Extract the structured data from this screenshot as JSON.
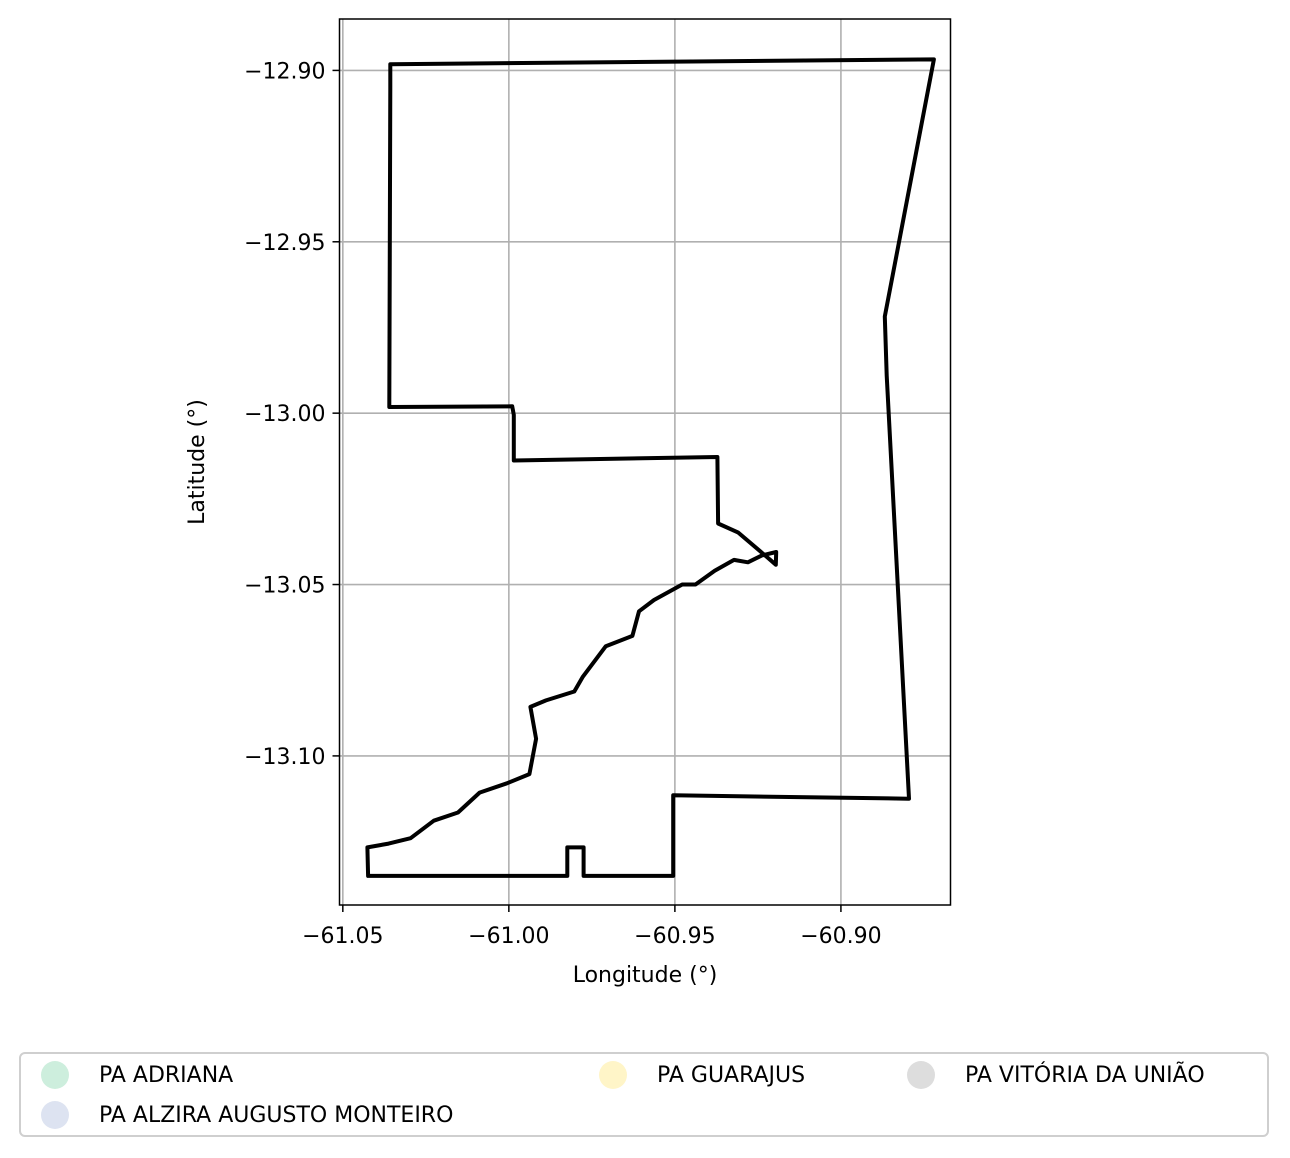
{
  "chart_data": {
    "type": "map",
    "xlabel": "Longitude (°)",
    "ylabel": "Latitude (°)",
    "xlim": [
      -61.051,
      -60.867
    ],
    "ylim": [
      -13.1435,
      -12.885
    ],
    "grid": true,
    "x_ticks": [
      -61.05,
      -61.0,
      -60.95,
      -60.9
    ],
    "y_ticks": [
      -12.9,
      -12.95,
      -13.0,
      -13.05,
      -13.1
    ],
    "x_tick_labels": [
      "−61.05",
      "−61.00",
      "−60.95",
      "−60.90"
    ],
    "y_tick_labels": [
      "−12.90",
      "−12.95",
      "−13.00",
      "−13.05",
      "−13.10"
    ],
    "boundary_color": "#000000",
    "boundary": [
      [
        -61.0357,
        -12.8982
      ],
      [
        -60.872,
        -12.8968
      ],
      [
        -60.8868,
        -12.9718
      ],
      [
        -60.8862,
        -12.989
      ],
      [
        -60.8795,
        -13.1125
      ],
      [
        -60.9505,
        -13.1115
      ],
      [
        -60.9505,
        -13.135
      ],
      [
        -60.9775,
        -13.135
      ],
      [
        -60.9775,
        -13.1267
      ],
      [
        -60.9824,
        -13.1267
      ],
      [
        -60.9824,
        -13.135
      ],
      [
        -61.0424,
        -13.135
      ],
      [
        -61.0426,
        -13.1267
      ],
      [
        -61.0362,
        -13.1256
      ],
      [
        -61.0296,
        -13.124
      ],
      [
        -61.0226,
        -13.1189
      ],
      [
        -61.0153,
        -13.1165
      ],
      [
        -61.0088,
        -13.1107
      ],
      [
        -61.0006,
        -13.108
      ],
      [
        -60.9938,
        -13.1053
      ],
      [
        -60.9918,
        -13.095
      ],
      [
        -60.9935,
        -13.0857
      ],
      [
        -60.9888,
        -13.0838
      ],
      [
        -60.9803,
        -13.0812
      ],
      [
        -60.9778,
        -13.077
      ],
      [
        -60.9708,
        -13.068
      ],
      [
        -60.9628,
        -13.065
      ],
      [
        -60.9608,
        -13.0578
      ],
      [
        -60.9563,
        -13.0545
      ],
      [
        -60.9478,
        -13.05
      ],
      [
        -60.9438,
        -13.05
      ],
      [
        -60.938,
        -13.046
      ],
      [
        -60.9322,
        -13.0428
      ],
      [
        -60.928,
        -13.0435
      ],
      [
        -60.9238,
        -13.0415
      ],
      [
        -60.9195,
        -13.0405
      ],
      [
        -60.9196,
        -13.0442
      ],
      [
        -60.9225,
        -13.0418
      ],
      [
        -60.931,
        -13.0348
      ],
      [
        -60.937,
        -13.0322
      ],
      [
        -60.9372,
        -13.0128
      ],
      [
        -60.9985,
        -13.0138
      ],
      [
        -60.9985,
        -13.0005
      ],
      [
        -60.999,
        -12.998
      ],
      [
        -61.036,
        -12.9982
      ],
      [
        -61.0357,
        -12.905
      ],
      [
        -61.0357,
        -12.8982
      ]
    ]
  },
  "legend": {
    "items": [
      {
        "label": "PA ADRIANA",
        "color": "#cdeedd"
      },
      {
        "label": "PA ALZIRA AUGUSTO MONTEIRO",
        "color": "#dde3f1"
      },
      {
        "label": "PA GUARAJUS",
        "color": "#fff5c8"
      },
      {
        "label": "PA VITÓRIA DA UNIÃO",
        "color": "#dddddd"
      }
    ]
  }
}
